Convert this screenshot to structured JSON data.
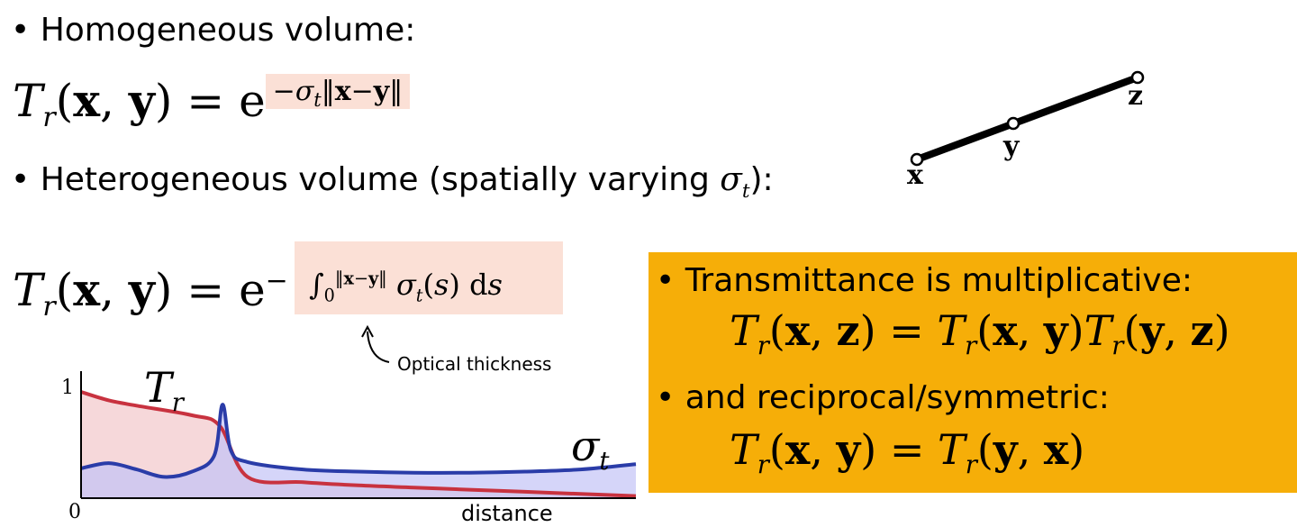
{
  "bullets": {
    "homogeneous": "Homogeneous volume:",
    "heterogeneous": "Heterogeneous volume (spatially varying ",
    "heterogeneous_end": "):",
    "multiplicative": "Transmittance is multiplicative:",
    "reciprocal": "and reciprocal/symmetric:"
  },
  "equations": {
    "homogeneous": "T_r(x,y) = e^{-σ_t ||x-y||}",
    "heterogeneous": "T_r(x,y) = e^{-∫_0^{||x-y||} σ_t(s) ds}",
    "multiplicative": "T_r(x,z) = T_r(x,y) T_r(y,z)",
    "reciprocal": "T_r(x,y) = T_r(y,x)"
  },
  "annotation": "Optical thickness",
  "points": [
    "x",
    "y",
    "z"
  ],
  "colors": {
    "highlight": "#fbe0d6",
    "box": "#f6ae08",
    "tr_curve": "#c8323f",
    "sigma_curve": "#2a3ca8",
    "tr_fill": "#f2c7cb",
    "sigma_fill": "#c3c3f6"
  },
  "chart_data": {
    "type": "line",
    "xlabel": "distance",
    "ylabel": "",
    "x_tick_labels": [
      "0"
    ],
    "y_tick_labels": [
      "1"
    ],
    "ylim": [
      0,
      1
    ],
    "series": [
      {
        "name": "T_r",
        "x": [
          0,
          0.05,
          0.1,
          0.2,
          0.25,
          0.3,
          0.4,
          0.5,
          0.6,
          0.7,
          0.8,
          0.9,
          1.0
        ],
        "values": [
          1.0,
          0.92,
          0.87,
          0.78,
          0.68,
          0.2,
          0.15,
          0.12,
          0.1,
          0.08,
          0.06,
          0.04,
          0.02
        ]
      },
      {
        "name": "σ_t",
        "x": [
          0,
          0.05,
          0.1,
          0.15,
          0.2,
          0.24,
          0.255,
          0.27,
          0.3,
          0.4,
          0.5,
          0.6,
          0.7,
          0.8,
          0.9,
          1.0
        ],
        "values": [
          0.28,
          0.33,
          0.27,
          0.2,
          0.25,
          0.4,
          0.88,
          0.45,
          0.34,
          0.27,
          0.25,
          0.24,
          0.24,
          0.25,
          0.27,
          0.32
        ]
      }
    ]
  }
}
